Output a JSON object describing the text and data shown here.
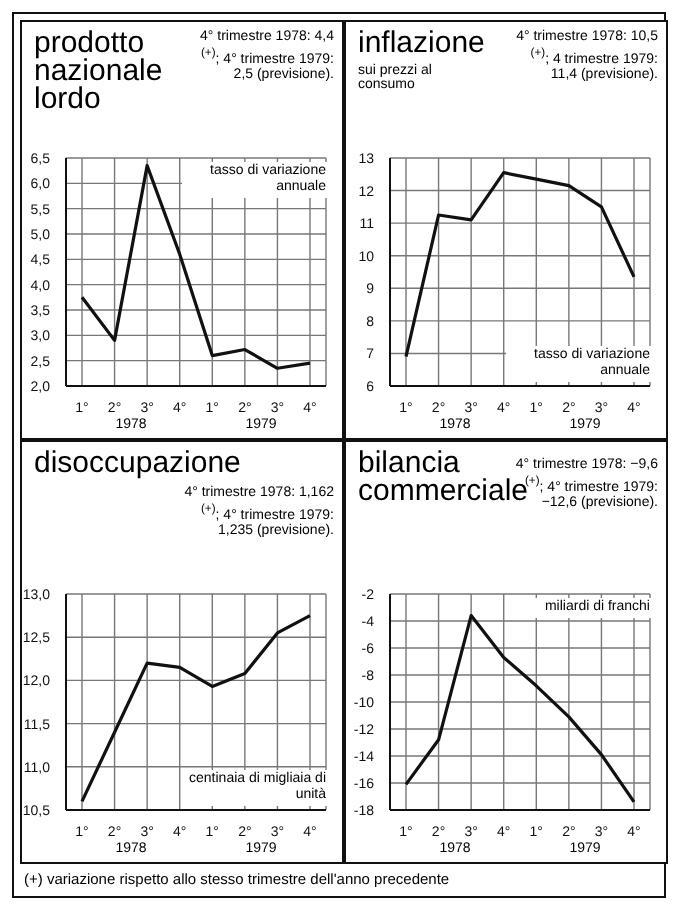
{
  "chart_data": [
    {
      "type": "line",
      "title": "prodotto nazionale lordo",
      "categories": [
        "1°",
        "2°",
        "3°",
        "4°",
        "1°",
        "2°",
        "3°",
        "4°"
      ],
      "values": [
        3.75,
        2.9,
        6.35,
        4.6,
        2.6,
        2.72,
        2.35,
        2.45
      ],
      "color": "#111111",
      "ylim": [
        2.0,
        6.5
      ],
      "yticks": [
        {
          "value": 2.0,
          "label": "2,0"
        },
        {
          "value": 2.5,
          "label": "2,5"
        },
        {
          "value": 3.0,
          "label": "3,0"
        },
        {
          "value": 3.5,
          "label": "3,5"
        },
        {
          "value": 4.0,
          "label": "4,0"
        },
        {
          "value": 4.5,
          "label": "4,5"
        },
        {
          "value": 5.0,
          "label": "5,0"
        },
        {
          "value": 5.5,
          "label": "5,5"
        },
        {
          "value": 6.0,
          "label": "6,0"
        },
        {
          "value": 6.5,
          "label": "6,5"
        }
      ],
      "grid": true,
      "marker": "none",
      "annotations": [
        "4° trimestre 1978: 4,4 $^{(+)}$; 4° trimestre 1979: 2,5 (previsione).",
        "tasso di variazione annuale",
        "1978",
        "1979"
      ]
    },
    {
      "type": "line",
      "title": "inflazione",
      "subtitle": "sui prezzi al consumo",
      "categories": [
        "1°",
        "2°",
        "3°",
        "4°",
        "1°",
        "2°",
        "3°",
        "4°"
      ],
      "values": [
        6.9,
        11.25,
        11.1,
        12.55,
        12.35,
        12.15,
        11.5,
        9.35
      ],
      "color": "#111111",
      "ylim": [
        6,
        13
      ],
      "yticks": [
        6,
        7,
        8,
        9,
        10,
        11,
        12,
        13
      ],
      "grid": true,
      "marker": "none",
      "annotations": [
        "4° trimestre 1978: 10,5 $^{(+)}$; 4 trimestre 1979: 11,4 (previsione).",
        "tasso di variazione annuale",
        "1978",
        "1979"
      ]
    },
    {
      "type": "line",
      "title": "disoccupazione",
      "categories": [
        "1°",
        "2°",
        "3°",
        "4°",
        "1°",
        "2°",
        "3°",
        "4°"
      ],
      "values": [
        10.6,
        11.4,
        12.2,
        12.15,
        11.93,
        12.08,
        12.55,
        12.75
      ],
      "color": "#111111",
      "ylim": [
        10.5,
        13.0
      ],
      "yticks": [
        {
          "value": 10.5,
          "label": "10,5"
        },
        {
          "value": 11.0,
          "label": "11,0"
        },
        {
          "value": 11.5,
          "label": "11,5"
        },
        {
          "value": 12.0,
          "label": "12,0"
        },
        {
          "value": 12.5,
          "label": "12,5"
        },
        {
          "value": 13.0,
          "label": "13,0"
        }
      ],
      "grid": true,
      "marker": "none",
      "annotations": [
        "4° trimestre 1978: 1,162 $^{(+)}$; 4° trimestre 1979: 1,235 (previsione).",
        "centinaia di migliaia di unità",
        "1978",
        "1979"
      ]
    },
    {
      "type": "line",
      "title": "bilancia commerciale",
      "categories": [
        "1°",
        "2°",
        "3°",
        "4°",
        "1°",
        "2°",
        "3°",
        "4°"
      ],
      "values": [
        -16.1,
        -12.8,
        -3.6,
        -6.7,
        -8.8,
        -11.1,
        -13.9,
        -17.4
      ],
      "color": "#111111",
      "ylim": [
        -18,
        -2
      ],
      "yticks": [
        -18,
        -16,
        -14,
        -12,
        -10,
        -8,
        -6,
        -4,
        -2
      ],
      "grid": true,
      "marker": "none",
      "annotations": [
        "4° trimestre 1978: −9,6 $^{(+)}$; 4° trimestre 1979: −12,6 (previsione).",
        "miliardi di franchi",
        "1978",
        "1979",
        "(+) variazione rispetto allo stesso trimestre dell'anno precedente"
      ]
    }
  ]
}
